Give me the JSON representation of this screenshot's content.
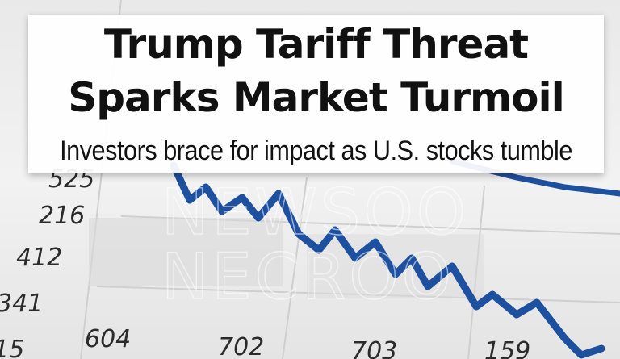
{
  "header": {
    "title_lines": [
      "Trump Tariff Threat",
      "Sparks Market Turmoil"
    ],
    "subtitle": "Investors brace for impact as U.S. stocks tumble"
  },
  "background_chart": {
    "y_labels": [
      "525",
      "216",
      "412",
      "341",
      "15"
    ],
    "x_labels": [
      "604",
      "702",
      "703",
      "159"
    ]
  },
  "watermark": [
    "NEWSOO",
    "NECROO"
  ]
}
